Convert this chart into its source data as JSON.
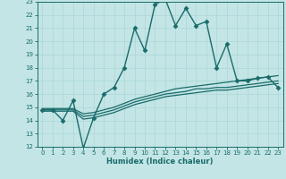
{
  "xlabel": "Humidex (Indice chaleur)",
  "ylabel": "",
  "xlim": [
    -0.5,
    23.5
  ],
  "ylim": [
    12,
    23
  ],
  "xticks": [
    0,
    1,
    2,
    3,
    4,
    5,
    6,
    7,
    8,
    9,
    10,
    11,
    12,
    13,
    14,
    15,
    16,
    17,
    18,
    19,
    20,
    21,
    22,
    23
  ],
  "yticks": [
    12,
    13,
    14,
    15,
    16,
    17,
    18,
    19,
    20,
    21,
    22,
    23
  ],
  "bg_color": "#c3e5e5",
  "line_color": "#1a6b6b",
  "grid_color": "#b0d8d8",
  "series": [
    {
      "x": [
        0,
        1,
        2,
        3,
        4,
        5,
        6,
        7,
        8,
        9,
        10,
        11,
        12,
        13,
        14,
        15,
        16,
        17,
        18,
        19,
        20,
        21,
        22,
        23
      ],
      "y": [
        14.8,
        14.8,
        14.0,
        15.5,
        11.9,
        14.2,
        16.0,
        16.5,
        18.0,
        21.0,
        19.3,
        22.8,
        23.2,
        21.2,
        22.5,
        21.2,
        21.5,
        18.0,
        19.8,
        17.0,
        17.0,
        17.2,
        17.3,
        16.5
      ],
      "marker": "D",
      "markersize": 2.5,
      "linewidth": 1.0
    },
    {
      "x": [
        0,
        1,
        2,
        3,
        4,
        5,
        6,
        7,
        8,
        9,
        10,
        11,
        12,
        13,
        14,
        15,
        16,
        17,
        18,
        19,
        20,
        21,
        22,
        23
      ],
      "y": [
        14.9,
        14.9,
        14.9,
        14.9,
        14.5,
        14.6,
        14.8,
        15.0,
        15.3,
        15.6,
        15.8,
        16.0,
        16.2,
        16.4,
        16.5,
        16.6,
        16.7,
        16.8,
        16.9,
        17.0,
        17.1,
        17.2,
        17.3,
        17.4
      ],
      "marker": null,
      "markersize": 0,
      "linewidth": 0.9
    },
    {
      "x": [
        0,
        1,
        2,
        3,
        4,
        5,
        6,
        7,
        8,
        9,
        10,
        11,
        12,
        13,
        14,
        15,
        16,
        17,
        18,
        19,
        20,
        21,
        22,
        23
      ],
      "y": [
        14.8,
        14.8,
        14.8,
        14.8,
        14.3,
        14.4,
        14.6,
        14.8,
        15.1,
        15.4,
        15.6,
        15.8,
        16.0,
        16.1,
        16.2,
        16.4,
        16.4,
        16.5,
        16.5,
        16.6,
        16.7,
        16.8,
        16.9,
        17.0
      ],
      "marker": null,
      "markersize": 0,
      "linewidth": 0.9
    },
    {
      "x": [
        0,
        1,
        2,
        3,
        4,
        5,
        6,
        7,
        8,
        9,
        10,
        11,
        12,
        13,
        14,
        15,
        16,
        17,
        18,
        19,
        20,
        21,
        22,
        23
      ],
      "y": [
        14.7,
        14.7,
        14.7,
        14.7,
        14.1,
        14.2,
        14.4,
        14.6,
        14.9,
        15.2,
        15.4,
        15.6,
        15.8,
        15.9,
        16.0,
        16.1,
        16.2,
        16.3,
        16.3,
        16.4,
        16.5,
        16.6,
        16.7,
        16.8
      ],
      "marker": null,
      "markersize": 0,
      "linewidth": 0.9
    }
  ]
}
